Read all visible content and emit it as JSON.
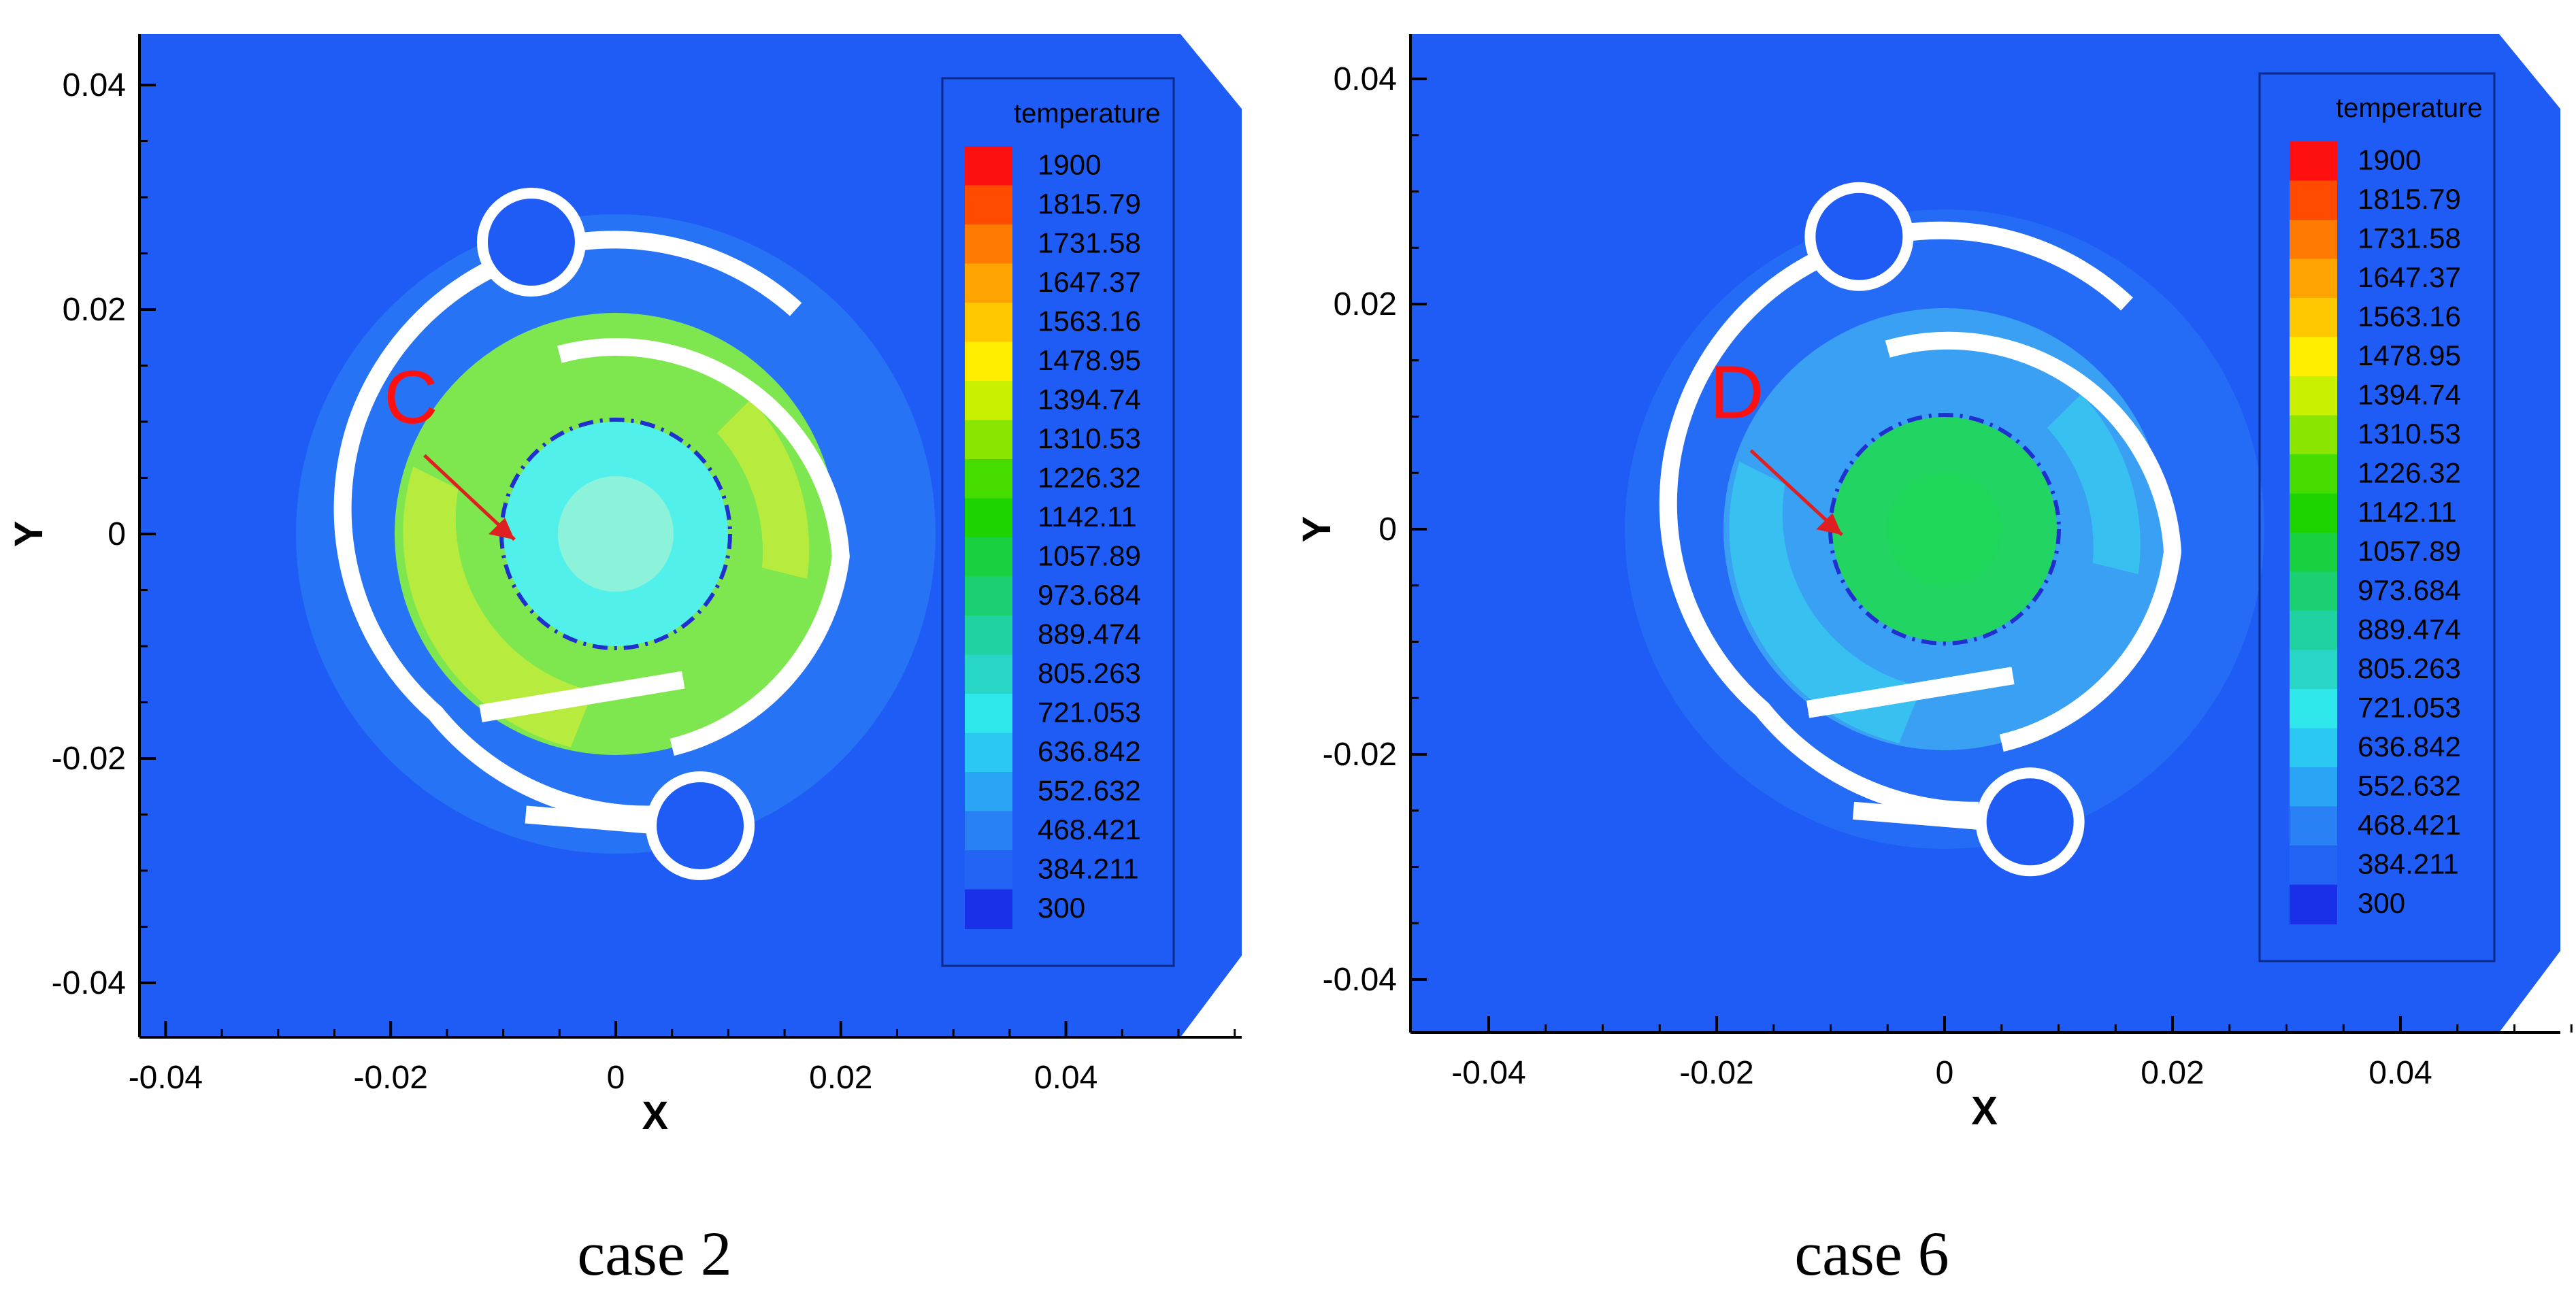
{
  "colors": {
    "background": "#1e5cf5",
    "ring": "#ffffff",
    "arrow": "#e02020",
    "label": "#ff1010",
    "dash_circle": "#1f2fd0"
  },
  "panels": [
    {
      "caption": "case 2",
      "location_label": "C",
      "legend_title": "temperature",
      "field_colors": {
        "annulus": "#7ee64e",
        "annulus_hot": "#c6ee3c",
        "core": "#52f0ea",
        "core_center": "#8cf3da",
        "halo": "#2f86f4"
      }
    },
    {
      "caption": "case 6",
      "location_label": "D",
      "legend_title": "temperature",
      "field_colors": {
        "annulus": "#3aa0f4",
        "annulus_hot": "#38c8f0",
        "core": "#22d462",
        "core_center": "#1ed65a",
        "halo": "#2a78f4"
      }
    }
  ],
  "chart_data": [
    {
      "type": "heatmap",
      "title": "",
      "caption": "case 2",
      "xlabel": "X",
      "ylabel": "Y",
      "xlim": [
        -0.043,
        0.055
      ],
      "ylim": [
        -0.045,
        0.044
      ],
      "xticks": [
        -0.04,
        -0.02,
        0,
        0.02,
        0.04
      ],
      "yticks": [
        -0.04,
        -0.02,
        0,
        0.02,
        0.04
      ],
      "xtick_labels": [
        "-0.04",
        "-0.02",
        "0",
        "0.02",
        "0.04"
      ],
      "ytick_labels": [
        "0.04",
        "0.02",
        "0",
        "-0.02",
        "-0.04"
      ],
      "colorbar": {
        "title": "temperature",
        "levels": [
          "1900",
          "1815.79",
          "1731.58",
          "1647.37",
          "1563.16",
          "1478.95",
          "1394.74",
          "1310.53",
          "1226.32",
          "1142.11",
          "1057.89",
          "973.684",
          "889.474",
          "805.263",
          "721.053",
          "636.842",
          "552.632",
          "468.421",
          "384.211",
          "300"
        ],
        "colors": [
          "#ff1010",
          "#ff4a00",
          "#ff7a00",
          "#ffa400",
          "#ffc800",
          "#ffee00",
          "#c8f000",
          "#8ae600",
          "#46dc00",
          "#1ed400",
          "#18d040",
          "#1ad070",
          "#20d2a0",
          "#28d6c8",
          "#2ee8ec",
          "#2cc8f4",
          "#2aa4f4",
          "#2880f4",
          "#2464f4",
          "#1a30e8"
        ]
      },
      "annotations": [
        {
          "text": "C",
          "x": -0.02,
          "y": 0.012
        }
      ],
      "regions": [
        {
          "name": "surrounding",
          "approx_temperature": 384.211
        },
        {
          "name": "inner swirl annulus",
          "approx_temperature": 1310.53
        },
        {
          "name": "central core",
          "approx_temperature": 805.263
        }
      ]
    },
    {
      "type": "heatmap",
      "title": "",
      "caption": "case 6",
      "xlabel": "X",
      "ylabel": "Y",
      "xlim": [
        -0.042,
        0.055
      ],
      "ylim": [
        -0.045,
        0.044
      ],
      "xticks": [
        -0.04,
        -0.02,
        0,
        0.02,
        0.04
      ],
      "yticks": [
        -0.04,
        -0.02,
        0,
        0.02,
        0.04
      ],
      "xtick_labels": [
        "-0.04",
        "-0.02",
        "0",
        "0.02",
        "0.04"
      ],
      "ytick_labels": [
        "0.04",
        "0.02",
        "0",
        "-0.02",
        "-0.04"
      ],
      "colorbar": {
        "title": "temperature",
        "levels": [
          "1900",
          "1815.79",
          "1731.58",
          "1647.37",
          "1563.16",
          "1478.95",
          "1394.74",
          "1310.53",
          "1226.32",
          "1142.11",
          "1057.89",
          "973.684",
          "889.474",
          "805.263",
          "721.053",
          "636.842",
          "552.632",
          "468.421",
          "384.211",
          "300"
        ],
        "colors": [
          "#ff1010",
          "#ff4a00",
          "#ff7a00",
          "#ffa400",
          "#ffc800",
          "#ffee00",
          "#c8f000",
          "#8ae600",
          "#46dc00",
          "#1ed400",
          "#18d040",
          "#1ad070",
          "#20d2a0",
          "#28d6c8",
          "#2ee8ec",
          "#2cc8f4",
          "#2aa4f4",
          "#2880f4",
          "#2464f4",
          "#1a30e8"
        ]
      },
      "annotations": [
        {
          "text": "D",
          "x": -0.02,
          "y": 0.012
        }
      ],
      "regions": [
        {
          "name": "surrounding",
          "approx_temperature": 384.211
        },
        {
          "name": "inner swirl annulus",
          "approx_temperature": 552.632
        },
        {
          "name": "central core",
          "approx_temperature": 1142.11
        }
      ]
    }
  ]
}
